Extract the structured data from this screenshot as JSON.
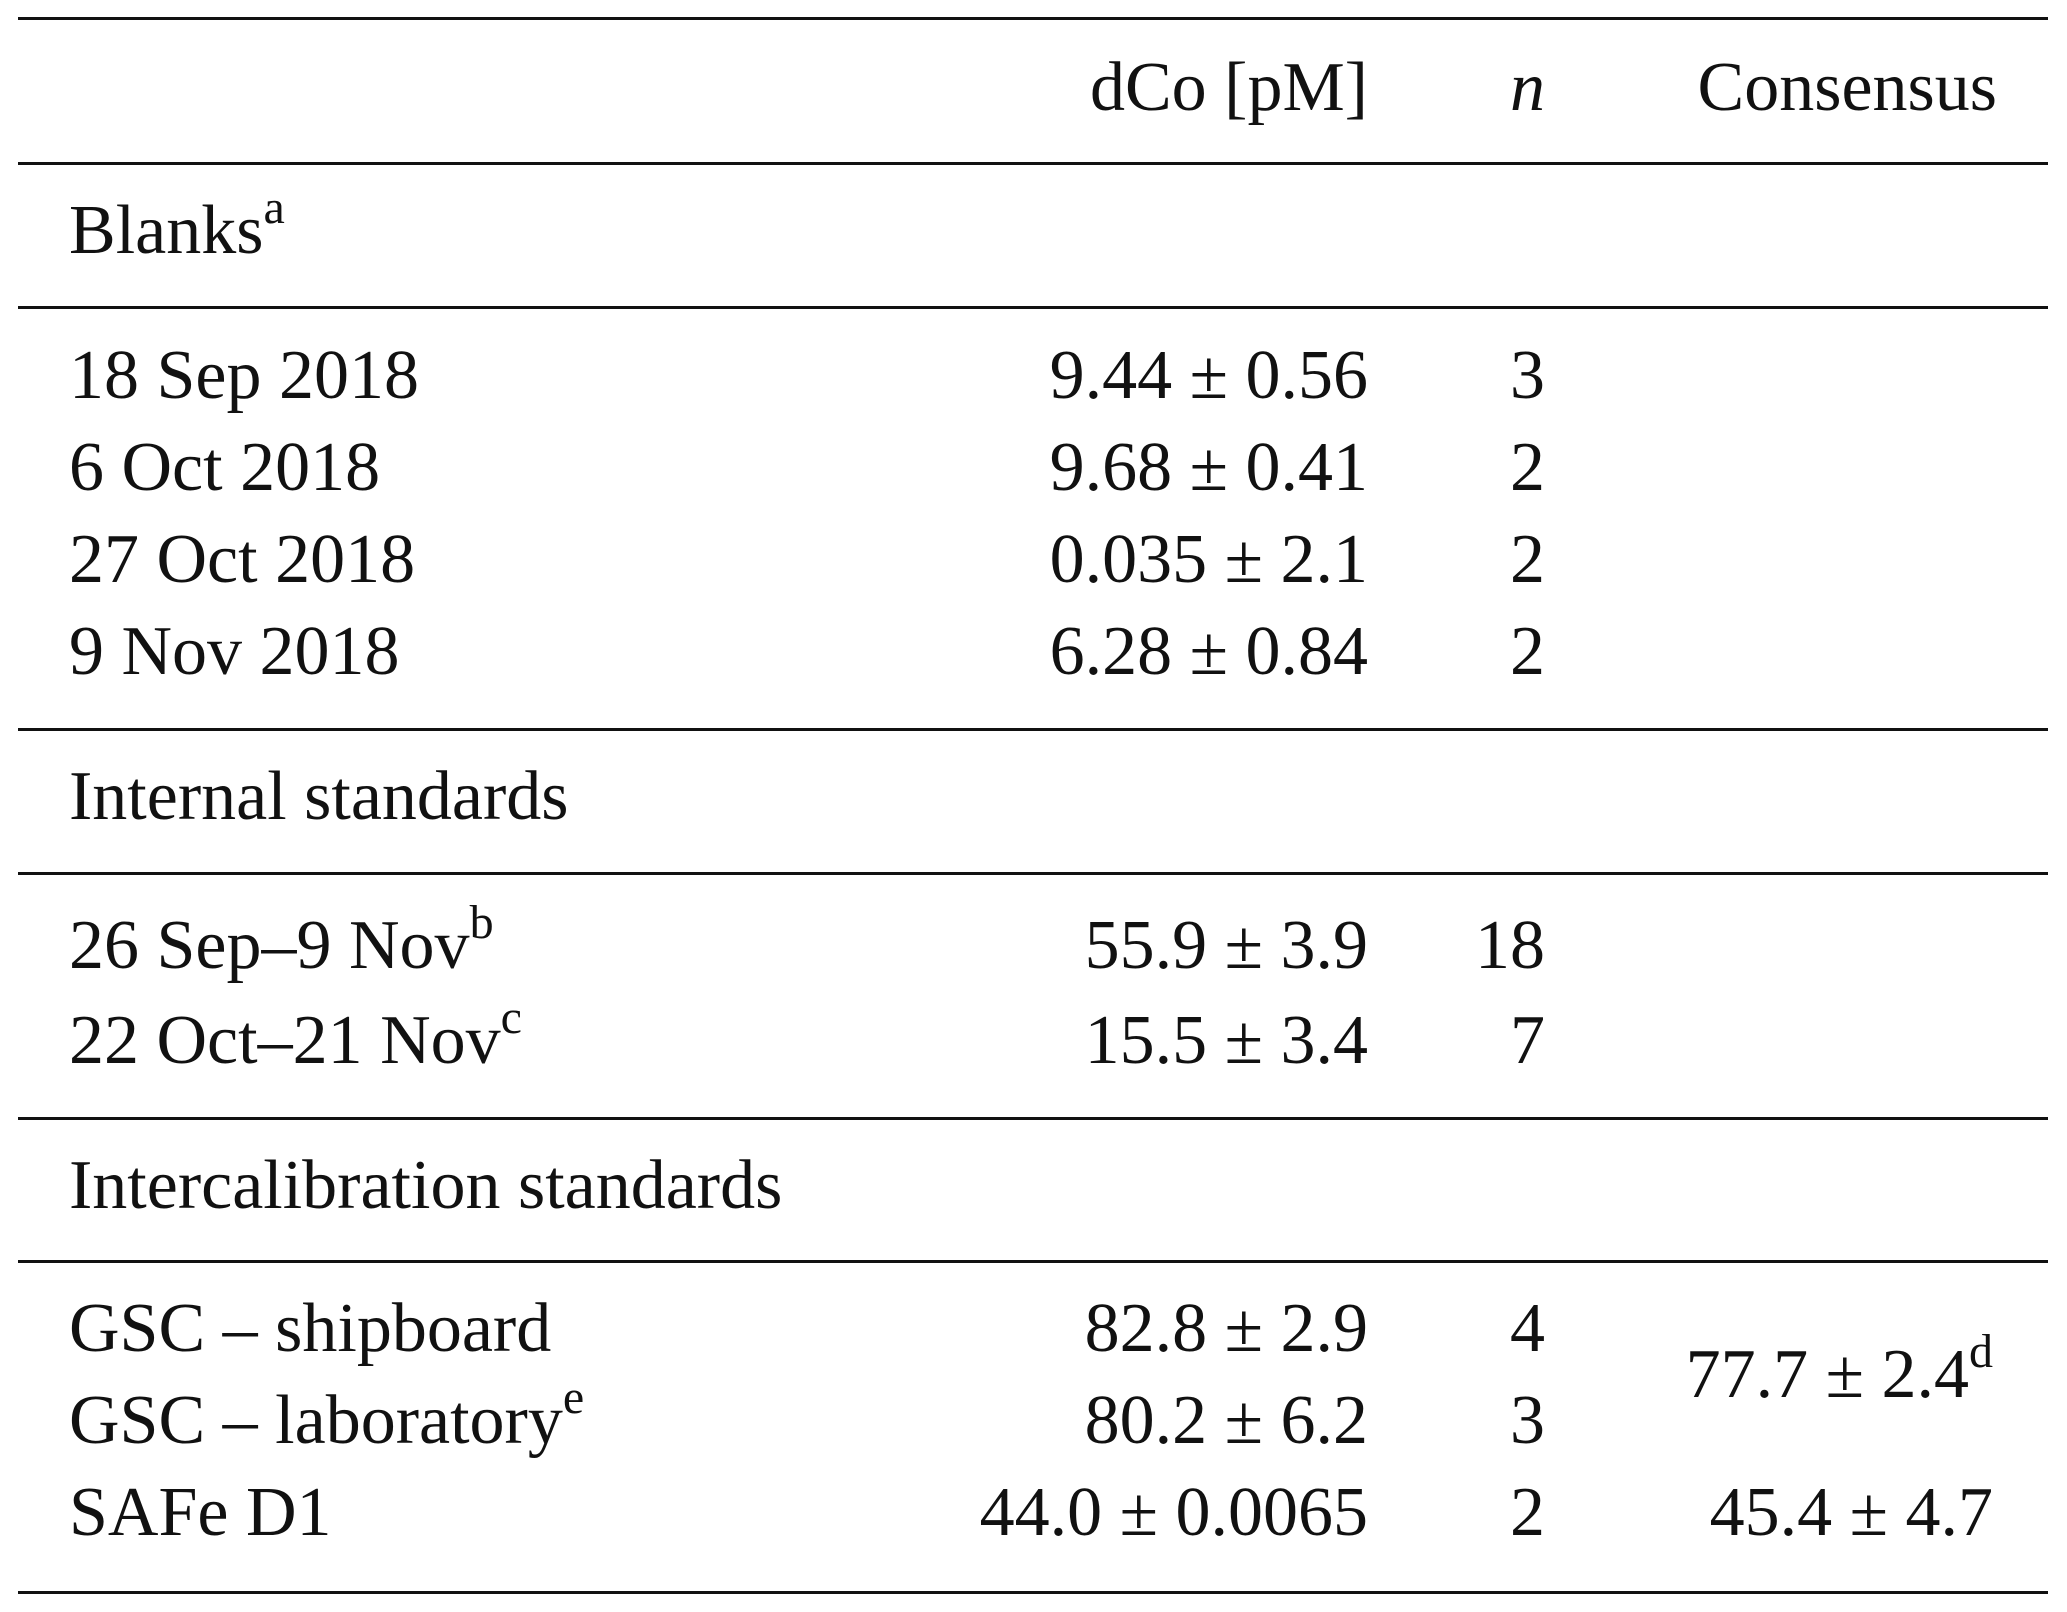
{
  "header": {
    "dco": "dCo [pM]",
    "n": "n",
    "consensus": "Consensus"
  },
  "sections": [
    {
      "title": "Blanks",
      "note": "a",
      "rows": [
        {
          "label": "18 Sep 2018",
          "dco": "9.44 ± 0.56",
          "n": 3
        },
        {
          "label": "6 Oct 2018",
          "dco": "9.68 ± 0.41",
          "n": 2
        },
        {
          "label": "27 Oct 2018",
          "dco": "0.035 ± 2.1",
          "n": 2
        },
        {
          "label": "9 Nov 2018",
          "dco": "6.28 ± 0.84",
          "n": 2
        }
      ]
    },
    {
      "title": "Internal standards",
      "rows": [
        {
          "label": "26 Sep–9 Nov",
          "note": "b",
          "dco": "55.9 ± 3.9",
          "n": 18
        },
        {
          "label": "22 Oct–21 Nov",
          "note": "c",
          "dco": "15.5 ± 3.4",
          "n": 7
        }
      ]
    },
    {
      "title": "Intercalibration standards",
      "rows": [
        {
          "label": "GSC – shipboard",
          "dco": "82.8 ± 2.9",
          "n": 4
        },
        {
          "label": "GSC – laboratory",
          "note": "e",
          "dco": "80.2 ± 6.2",
          "n": 3
        },
        {
          "label": "SAFe D1",
          "dco": "44.0 ± 0.0065",
          "n": 2
        }
      ],
      "consensus": [
        {
          "value": "77.7 ± 2.4",
          "note": "d"
        },
        {
          "value": "45.4 ± 4.7"
        }
      ]
    }
  ]
}
